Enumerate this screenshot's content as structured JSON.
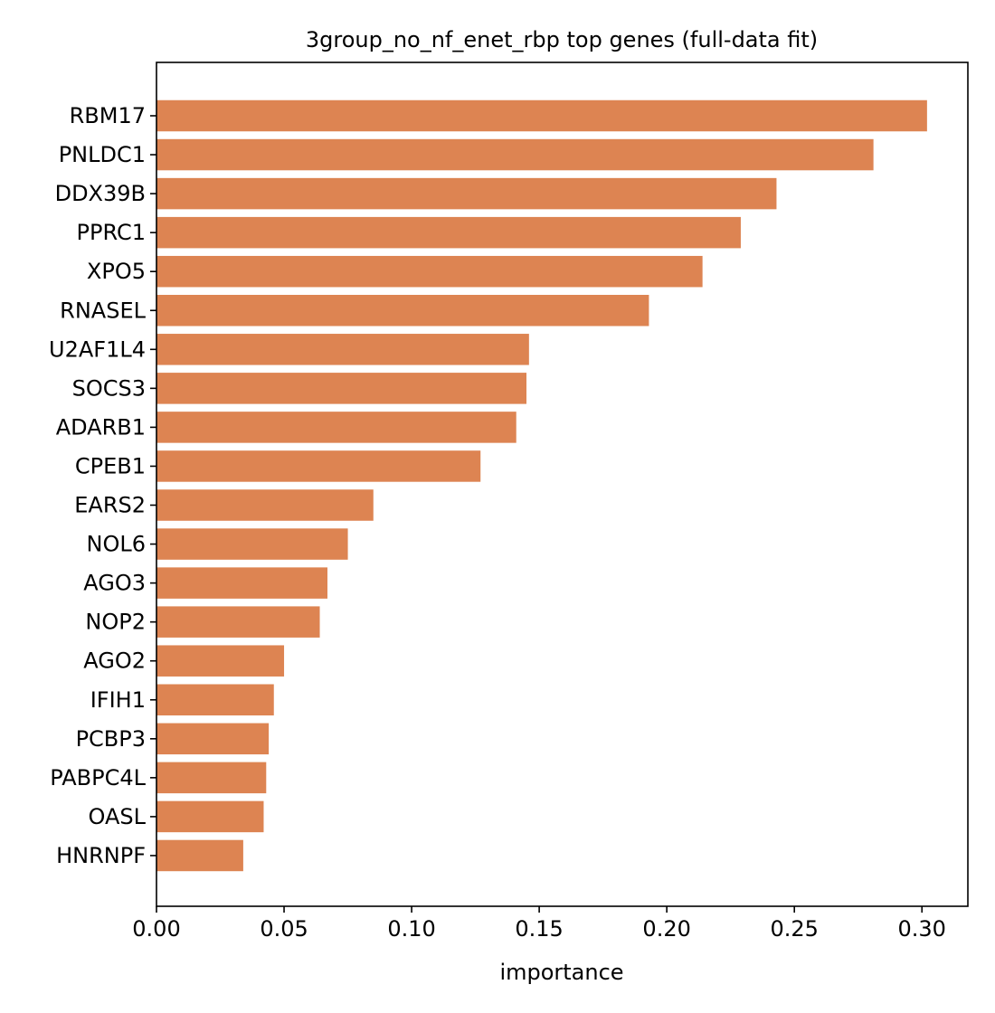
{
  "chart_data": {
    "type": "bar",
    "orientation": "horizontal",
    "title": "3group_no_nf_enet_rbp top genes (full-data fit)",
    "xlabel": "importance",
    "ylabel": "",
    "xlim": [
      0,
      0.318
    ],
    "x_ticks": [
      0.0,
      0.05,
      0.1,
      0.15,
      0.2,
      0.25,
      0.3
    ],
    "x_tick_labels": [
      "0.00",
      "0.05",
      "0.10",
      "0.15",
      "0.20",
      "0.25",
      "0.30"
    ],
    "grid": false,
    "bar_color": "#dd8452",
    "categories": [
      "RBM17",
      "PNLDC1",
      "DDX39B",
      "PPRC1",
      "XPO5",
      "RNASEL",
      "U2AF1L4",
      "SOCS3",
      "ADARB1",
      "CPEB1",
      "EARS2",
      "NOL6",
      "AGO3",
      "NOP2",
      "AGO2",
      "IFIH1",
      "PCBP3",
      "PABPC4L",
      "OASL",
      "HNRNPF"
    ],
    "values": [
      0.302,
      0.281,
      0.243,
      0.229,
      0.214,
      0.193,
      0.146,
      0.145,
      0.141,
      0.127,
      0.085,
      0.075,
      0.067,
      0.064,
      0.05,
      0.046,
      0.044,
      0.043,
      0.042,
      0.034
    ]
  }
}
